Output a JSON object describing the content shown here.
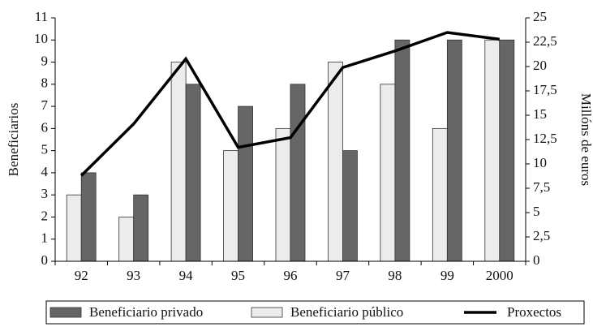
{
  "chart_data": {
    "type": "bar",
    "categories": [
      "92",
      "93",
      "94",
      "95",
      "96",
      "97",
      "98",
      "99",
      "2000"
    ],
    "series": [
      {
        "name": "Beneficiario privado",
        "color": "#666666",
        "values": [
          4,
          3,
          8,
          7,
          8,
          5,
          10,
          10,
          10
        ]
      },
      {
        "name": "Beneficiario público",
        "color": "#ececec",
        "values": [
          3,
          2,
          9,
          5,
          6,
          9,
          8,
          6,
          10
        ]
      },
      {
        "name": "Proxectos",
        "color": "#000000",
        "type": "line",
        "axis": "y2",
        "values": [
          8.8,
          14.1,
          20.8,
          11.7,
          12.7,
          19.9,
          21.6,
          23.5,
          22.8
        ]
      }
    ],
    "ylabel": "Beneficiarios",
    "y2label": "Millóns de euros",
    "ylim": [
      0,
      11
    ],
    "yticks": [
      0,
      1,
      2,
      3,
      4,
      5,
      6,
      7,
      8,
      9,
      10,
      11
    ],
    "y2lim": [
      0,
      25
    ],
    "y2ticks": [
      0,
      {
        "value": 2.5,
        "label": "2,5"
      },
      5,
      {
        "value": 7.5,
        "label": "7,5"
      },
      10,
      {
        "value": 12.5,
        "label": "12,5"
      },
      15,
      {
        "value": 17.5,
        "label": "17,5"
      },
      20,
      {
        "value": 22.5,
        "label": "22,5"
      },
      25
    ],
    "legend": "bottom"
  }
}
